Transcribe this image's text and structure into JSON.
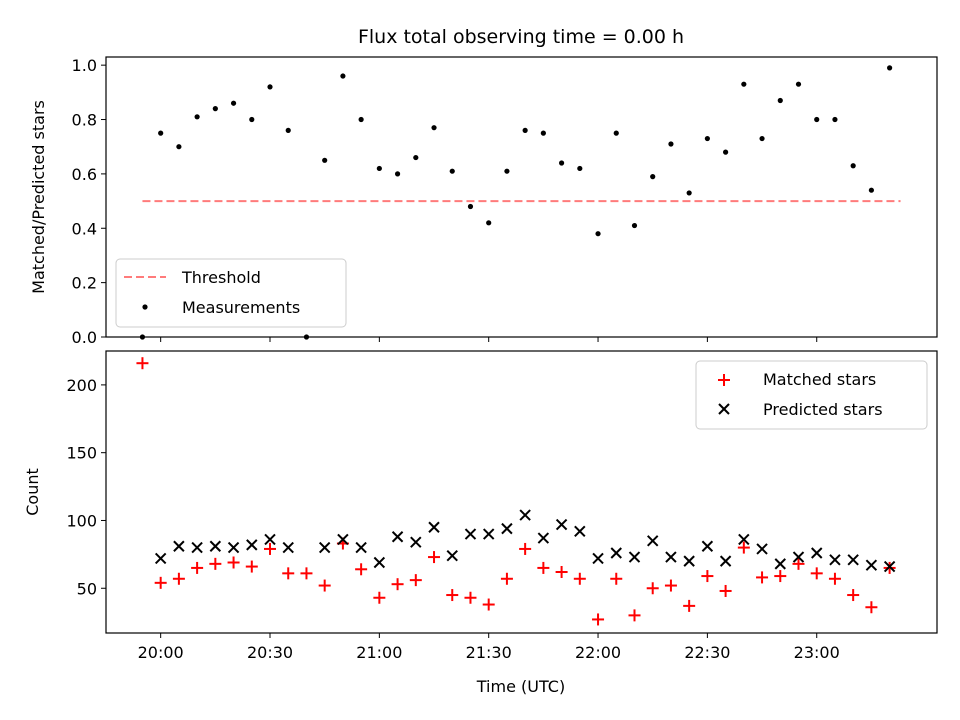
{
  "chart_data": [
    {
      "type": "scatter",
      "title": "Flux total observing time = 0.00 h",
      "ylabel": "Matched/Predicted stars",
      "xlabel": "",
      "ylim": [
        0,
        1.03
      ],
      "yticks": [
        "0.0",
        "0.2",
        "0.4",
        "0.6",
        "0.8",
        "1.0"
      ],
      "ytick_values": [
        0,
        0.2,
        0.4,
        0.6,
        0.8,
        1.0
      ],
      "xlim_minutes": [
        1185,
        1413
      ],
      "xtick_minutes": [
        1200,
        1230,
        1260,
        1290,
        1320,
        1350,
        1380
      ],
      "legend": {
        "placement": "lower-left",
        "threshold_label": "Threshold",
        "measurements_label": "Measurements"
      },
      "threshold": {
        "name": "Threshold",
        "value": 0.5,
        "x_start": 1195,
        "x_end": 1403,
        "color": "#ff7b7b"
      },
      "series": [
        {
          "name": "Measurements",
          "color": "#000000",
          "x": [
            1195,
            1200,
            1205,
            1210,
            1215,
            1220,
            1225,
            1230,
            1235,
            1240,
            1245,
            1250,
            1255,
            1260,
            1265,
            1270,
            1275,
            1280,
            1285,
            1290,
            1295,
            1300,
            1305,
            1310,
            1315,
            1320,
            1325,
            1330,
            1335,
            1340,
            1345,
            1350,
            1355,
            1360,
            1365,
            1370,
            1375,
            1380,
            1385,
            1390,
            1395,
            1400
          ],
          "y": [
            0.0,
            0.75,
            0.7,
            0.81,
            0.84,
            0.86,
            0.8,
            0.92,
            0.76,
            0.0,
            0.65,
            0.96,
            0.8,
            0.62,
            0.6,
            0.66,
            0.77,
            0.61,
            0.48,
            0.42,
            0.61,
            0.76,
            0.75,
            0.64,
            0.62,
            0.38,
            0.75,
            0.41,
            0.59,
            0.71,
            0.53,
            0.73,
            0.68,
            0.93,
            0.73,
            0.87,
            0.93,
            0.8,
            0.8,
            0.63,
            0.54,
            0.99
          ]
        }
      ]
    },
    {
      "type": "scatter",
      "title": "",
      "ylabel": "Count",
      "xlabel": "Time (UTC)",
      "ylim": [
        17,
        225
      ],
      "yticks": [
        "50",
        "100",
        "150",
        "200"
      ],
      "ytick_values": [
        50,
        100,
        150,
        200
      ],
      "xlim_minutes": [
        1185,
        1413
      ],
      "xtick_minutes": [
        1200,
        1230,
        1260,
        1290,
        1320,
        1350,
        1380
      ],
      "xticks": [
        "20:00",
        "20:30",
        "21:00",
        "21:30",
        "22:00",
        "22:30",
        "23:00"
      ],
      "legend": {
        "placement": "top-right",
        "matched_label": "Matched stars",
        "predicted_label": "Predicted stars"
      },
      "series": [
        {
          "name": "Matched stars",
          "marker": "+",
          "color": "#ff0000",
          "x": [
            1195,
            1200,
            1205,
            1210,
            1215,
            1220,
            1225,
            1230,
            1235,
            1240,
            1245,
            1250,
            1255,
            1260,
            1265,
            1270,
            1275,
            1280,
            1285,
            1290,
            1295,
            1300,
            1305,
            1310,
            1315,
            1320,
            1325,
            1330,
            1335,
            1340,
            1345,
            1350,
            1355,
            1360,
            1365,
            1370,
            1375,
            1380,
            1385,
            1390,
            1395,
            1400
          ],
          "y": [
            216,
            54,
            57,
            65,
            68,
            69,
            66,
            79,
            61,
            61,
            52,
            83,
            64,
            43,
            53,
            56,
            73,
            45,
            43,
            38,
            57,
            79,
            65,
            62,
            57,
            27,
            57,
            30,
            50,
            52,
            37,
            59,
            48,
            80,
            58,
            59,
            68,
            61,
            57,
            45,
            36,
            65
          ]
        },
        {
          "name": "Predicted stars",
          "marker": "x",
          "color": "#000000",
          "x": [
            1200,
            1205,
            1210,
            1215,
            1220,
            1225,
            1230,
            1235,
            1245,
            1250,
            1255,
            1260,
            1265,
            1270,
            1275,
            1280,
            1285,
            1290,
            1295,
            1300,
            1305,
            1310,
            1315,
            1320,
            1325,
            1330,
            1335,
            1340,
            1345,
            1350,
            1355,
            1360,
            1365,
            1370,
            1375,
            1380,
            1385,
            1390,
            1395,
            1400
          ],
          "y": [
            72,
            81,
            80,
            81,
            80,
            82,
            86,
            80,
            80,
            86,
            80,
            69,
            88,
            84,
            95,
            74,
            90,
            90,
            94,
            104,
            87,
            97,
            92,
            72,
            76,
            73,
            85,
            73,
            70,
            81,
            70,
            86,
            79,
            68,
            73,
            76,
            71,
            71,
            67,
            66
          ]
        }
      ]
    }
  ]
}
